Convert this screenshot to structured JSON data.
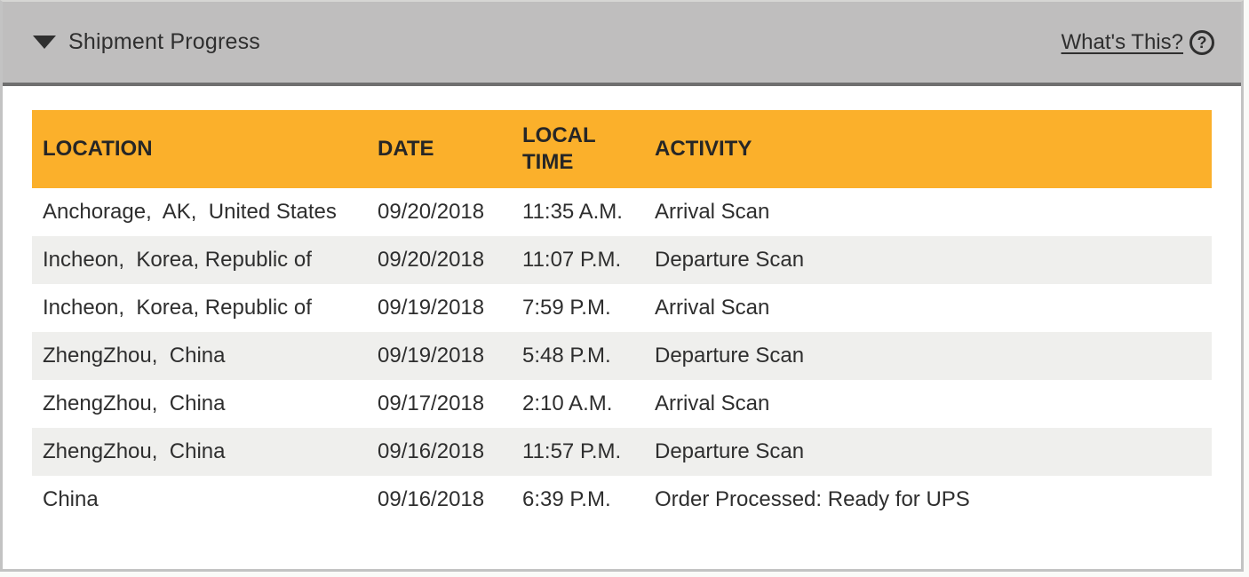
{
  "titlebar": {
    "title": "Shipment Progress",
    "whats_this_label": "What's This?",
    "help_glyph": "?",
    "collapse_icon": "triangle-down",
    "help_icon": "question-circle"
  },
  "table": {
    "columns": [
      {
        "key": "location",
        "label": "LOCATION"
      },
      {
        "key": "date",
        "label": "DATE"
      },
      {
        "key": "local_time",
        "label": "LOCAL TIME"
      },
      {
        "key": "activity",
        "label": "ACTIVITY"
      }
    ],
    "rows": [
      {
        "location": "Anchorage,  AK,  United States",
        "date": "09/20/2018",
        "local_time": "11:35 A.M.",
        "activity": "Arrival Scan"
      },
      {
        "location": "Incheon,  Korea, Republic of",
        "date": "09/20/2018",
        "local_time": "11:07 P.M.",
        "activity": "Departure Scan"
      },
      {
        "location": "Incheon,  Korea, Republic of",
        "date": "09/19/2018",
        "local_time": "7:59 P.M.",
        "activity": "Arrival Scan"
      },
      {
        "location": "ZhengZhou,  China",
        "date": "09/19/2018",
        "local_time": "5:48 P.M.",
        "activity": "Departure Scan"
      },
      {
        "location": "ZhengZhou,  China",
        "date": "09/17/2018",
        "local_time": "2:10 A.M.",
        "activity": "Arrival Scan"
      },
      {
        "location": "ZhengZhou,  China",
        "date": "09/16/2018",
        "local_time": "11:57 P.M.",
        "activity": "Departure Scan"
      },
      {
        "location": "China",
        "date": "09/16/2018",
        "local_time": "6:39 P.M.",
        "activity": "Order Processed: Ready for UPS"
      }
    ]
  },
  "colors": {
    "header_orange": "#FBB02B",
    "titlebar_gray": "#BFBEBE",
    "titlebar_border": "#6F6F6F",
    "stripe_gray": "#EFEFED",
    "text_dark": "#2E2E2E",
    "outer_border": "#C3C3C3",
    "page_bg": "#FAFAF8"
  }
}
